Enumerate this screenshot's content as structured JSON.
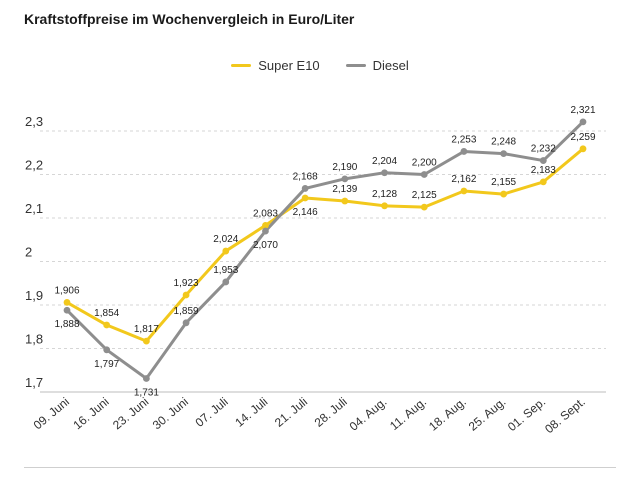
{
  "title": "Kraftstoffpreise im Wochenvergleich in Euro/Liter",
  "colors": {
    "super": "#f2c81c",
    "diesel": "#8e8e8e",
    "grid": "#d6d6d6",
    "text": "#333333"
  },
  "chart_data": {
    "type": "line",
    "title": "Kraftstoffpreise im Wochenvergleich in Euro/Liter",
    "xlabel": "",
    "ylabel": "",
    "ylim": [
      1.7,
      2.3
    ],
    "y_ticks": [
      1.7,
      1.8,
      1.9,
      2.0,
      2.1,
      2.2,
      2.3
    ],
    "y_tick_labels": [
      "1,7",
      "1,8",
      "1,9",
      "2",
      "2,1",
      "2,2",
      "2,3"
    ],
    "grid": true,
    "legend": "top-center",
    "categories": [
      "09. Juni",
      "16. Juni",
      "23. Juni",
      "30. Juni",
      "07. Juli",
      "14. Juli",
      "21. Juli",
      "28. Juli",
      "04. Aug.",
      "11. Aug.",
      "18. Aug.",
      "25. Aug.",
      "01. Sep.",
      "08. Sept."
    ],
    "series": [
      {
        "name": "Super E10",
        "color": "#f2c81c",
        "values": [
          1.906,
          1.854,
          1.817,
          1.923,
          2.024,
          2.083,
          2.146,
          2.139,
          2.128,
          2.125,
          2.162,
          2.155,
          2.183,
          2.259
        ],
        "labels": [
          "1,906",
          "1,854",
          "1,817",
          "1,923",
          "2,024",
          "2,083",
          "2,146",
          "2,139",
          "2,128",
          "2,125",
          "2,162",
          "2,155",
          "2,183",
          "2,259"
        ]
      },
      {
        "name": "Diesel",
        "color": "#8e8e8e",
        "values": [
          1.888,
          1.797,
          1.731,
          1.859,
          1.953,
          2.07,
          2.168,
          2.19,
          2.204,
          2.2,
          2.253,
          2.248,
          2.232,
          2.321
        ],
        "labels": [
          "1,888",
          "1,797",
          "1,731",
          "1,859",
          "1,953",
          "2,070",
          "2,168",
          "2,190",
          "2,204",
          "2,200",
          "2,253",
          "2,248",
          "2,232",
          "2,321"
        ]
      }
    ]
  }
}
